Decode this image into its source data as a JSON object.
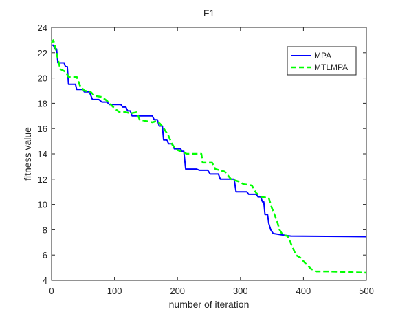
{
  "chart_data": {
    "type": "line",
    "title": "F1",
    "xlabel": "number of iteration",
    "ylabel": "fitness value",
    "xlim": [
      0,
      500
    ],
    "ylim": [
      4,
      24
    ],
    "xticks": [
      0,
      100,
      200,
      300,
      400,
      500
    ],
    "yticks": [
      4,
      6,
      8,
      10,
      12,
      14,
      16,
      18,
      20,
      22,
      24
    ],
    "grid": false,
    "legend_position": "top-right",
    "series": [
      {
        "name": "MPA",
        "color": "#0000ff",
        "style": "solid",
        "points": [
          [
            0,
            22.6
          ],
          [
            3,
            22.6
          ],
          [
            5,
            22.3
          ],
          [
            8,
            22.3
          ],
          [
            10,
            21.2
          ],
          [
            20,
            21.2
          ],
          [
            22,
            20.9
          ],
          [
            25,
            20.9
          ],
          [
            27,
            19.5
          ],
          [
            38,
            19.5
          ],
          [
            40,
            19.1
          ],
          [
            50,
            19.1
          ],
          [
            52,
            18.9
          ],
          [
            60,
            18.9
          ],
          [
            65,
            18.3
          ],
          [
            75,
            18.3
          ],
          [
            80,
            18.1
          ],
          [
            88,
            18.1
          ],
          [
            92,
            17.9
          ],
          [
            110,
            17.9
          ],
          [
            113,
            17.7
          ],
          [
            118,
            17.7
          ],
          [
            121,
            17.4
          ],
          [
            125,
            17.4
          ],
          [
            128,
            17.0
          ],
          [
            160,
            17.0
          ],
          [
            163,
            16.7
          ],
          [
            168,
            16.7
          ],
          [
            171,
            16.2
          ],
          [
            176,
            16.2
          ],
          [
            178,
            15.1
          ],
          [
            183,
            15.1
          ],
          [
            186,
            14.8
          ],
          [
            192,
            14.8
          ],
          [
            195,
            14.4
          ],
          [
            205,
            14.4
          ],
          [
            207,
            14.2
          ],
          [
            210,
            14.2
          ],
          [
            213,
            12.8
          ],
          [
            230,
            12.8
          ],
          [
            235,
            12.7
          ],
          [
            248,
            12.7
          ],
          [
            252,
            12.4
          ],
          [
            265,
            12.4
          ],
          [
            268,
            12.0
          ],
          [
            290,
            12.0
          ],
          [
            293,
            11.0
          ],
          [
            310,
            11.0
          ],
          [
            313,
            10.8
          ],
          [
            325,
            10.8
          ],
          [
            328,
            10.6
          ],
          [
            332,
            10.6
          ],
          [
            335,
            10.2
          ],
          [
            337,
            10.2
          ],
          [
            339,
            9.2
          ],
          [
            343,
            9.2
          ],
          [
            345,
            8.5
          ],
          [
            348,
            8.0
          ],
          [
            352,
            7.7
          ],
          [
            365,
            7.6
          ],
          [
            380,
            7.5
          ],
          [
            500,
            7.45
          ]
        ]
      },
      {
        "name": "MTLMPA",
        "color": "#00ff00",
        "style": "dashed",
        "points": [
          [
            0,
            22.8
          ],
          [
            3,
            23.0
          ],
          [
            6,
            22.4
          ],
          [
            10,
            21.5
          ],
          [
            14,
            20.7
          ],
          [
            22,
            20.5
          ],
          [
            27,
            20.1
          ],
          [
            40,
            20.1
          ],
          [
            45,
            19.4
          ],
          [
            52,
            19.0
          ],
          [
            62,
            18.9
          ],
          [
            68,
            18.6
          ],
          [
            80,
            18.5
          ],
          [
            88,
            18.2
          ],
          [
            100,
            17.6
          ],
          [
            108,
            17.3
          ],
          [
            118,
            17.3
          ],
          [
            125,
            17.2
          ],
          [
            135,
            17.3
          ],
          [
            140,
            16.7
          ],
          [
            150,
            16.6
          ],
          [
            160,
            16.5
          ],
          [
            167,
            16.6
          ],
          [
            172,
            16.4
          ],
          [
            177,
            16.1
          ],
          [
            185,
            15.5
          ],
          [
            192,
            14.7
          ],
          [
            200,
            14.3
          ],
          [
            210,
            14.1
          ],
          [
            215,
            14.0
          ],
          [
            238,
            14.0
          ],
          [
            240,
            13.3
          ],
          [
            255,
            13.3
          ],
          [
            260,
            12.8
          ],
          [
            275,
            12.6
          ],
          [
            285,
            12.0
          ],
          [
            298,
            11.8
          ],
          [
            305,
            11.6
          ],
          [
            318,
            11.5
          ],
          [
            325,
            10.9
          ],
          [
            333,
            10.6
          ],
          [
            345,
            10.5
          ],
          [
            350,
            9.7
          ],
          [
            358,
            8.7
          ],
          [
            362,
            8.0
          ],
          [
            367,
            7.6
          ],
          [
            375,
            7.5
          ],
          [
            382,
            6.7
          ],
          [
            388,
            6.0
          ],
          [
            395,
            5.8
          ],
          [
            402,
            5.4
          ],
          [
            412,
            4.9
          ],
          [
            420,
            4.7
          ],
          [
            440,
            4.7
          ],
          [
            500,
            4.6
          ]
        ]
      }
    ]
  }
}
